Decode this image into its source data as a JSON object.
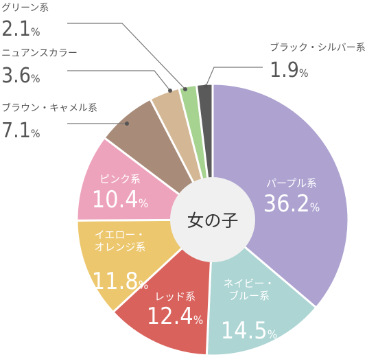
{
  "chart_data": {
    "type": "pie",
    "center_label": "女の子",
    "start": "top",
    "direction": "clockwise",
    "value_suffix": "%",
    "slices": [
      {
        "name": "パープル系",
        "value": 36.2,
        "color": "#ada2d0",
        "label_lines": [
          "パープル系"
        ],
        "label_style": "inside"
      },
      {
        "name": "ネイビー・ブルー系",
        "value": 14.5,
        "color": "#acd5d3",
        "label_lines": [
          "ネイビー・",
          "ブルー系"
        ],
        "label_style": "inside"
      },
      {
        "name": "レッド系",
        "value": 12.4,
        "color": "#d9625c",
        "label_lines": [
          "レッド系"
        ],
        "label_style": "inside"
      },
      {
        "name": "イエロー・オレンジ系",
        "value": 11.8,
        "color": "#ecc76e",
        "label_lines": [
          "イエロー・",
          "オレンジ系"
        ],
        "label_style": "inside"
      },
      {
        "name": "ピンク系",
        "value": 10.4,
        "color": "#eea3bd",
        "label_lines": [
          "ピンク系"
        ],
        "label_style": "inside"
      },
      {
        "name": "ブラウン・キャメル系",
        "value": 7.1,
        "color": "#a88b78",
        "label_lines": [
          "ブラウン・キャメル系"
        ],
        "label_style": "callout"
      },
      {
        "name": "ニュアンスカラー",
        "value": 3.6,
        "color": "#d4b896",
        "label_lines": [
          "ニュアンスカラー"
        ],
        "label_style": "callout"
      },
      {
        "name": "グリーン系",
        "value": 2.1,
        "color": "#a7d391",
        "label_lines": [
          "グリーン系"
        ],
        "label_style": "callout"
      },
      {
        "name": "ブラック・シルバー系",
        "value": 1.9,
        "color": "#5a5a5a",
        "label_lines": [
          "ブラック・シルバー系"
        ],
        "label_style": "callout"
      }
    ]
  }
}
